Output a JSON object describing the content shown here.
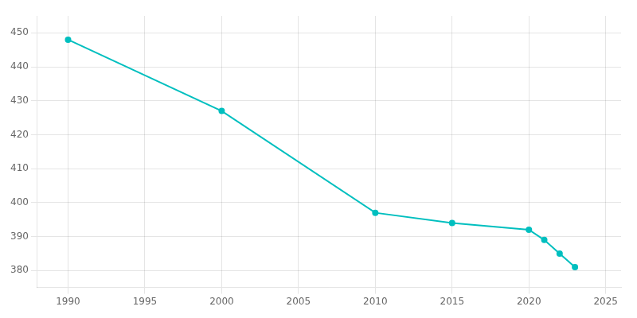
{
  "chart_data": {
    "type": "line",
    "x": [
      1990,
      2000,
      2010,
      2015,
      2020,
      2021,
      2022,
      2023
    ],
    "values": [
      448,
      427,
      397,
      394,
      392,
      389,
      385,
      381
    ],
    "color": "#00BFBF",
    "marker": "circle",
    "xlim": [
      1988,
      2026
    ],
    "xticks": [
      1990,
      1995,
      2000,
      2005,
      2010,
      2015,
      2020,
      2025
    ],
    "ylim": [
      375,
      455
    ],
    "yticks": [
      380,
      390,
      400,
      410,
      420,
      430,
      440,
      450
    ],
    "grid": true
  }
}
